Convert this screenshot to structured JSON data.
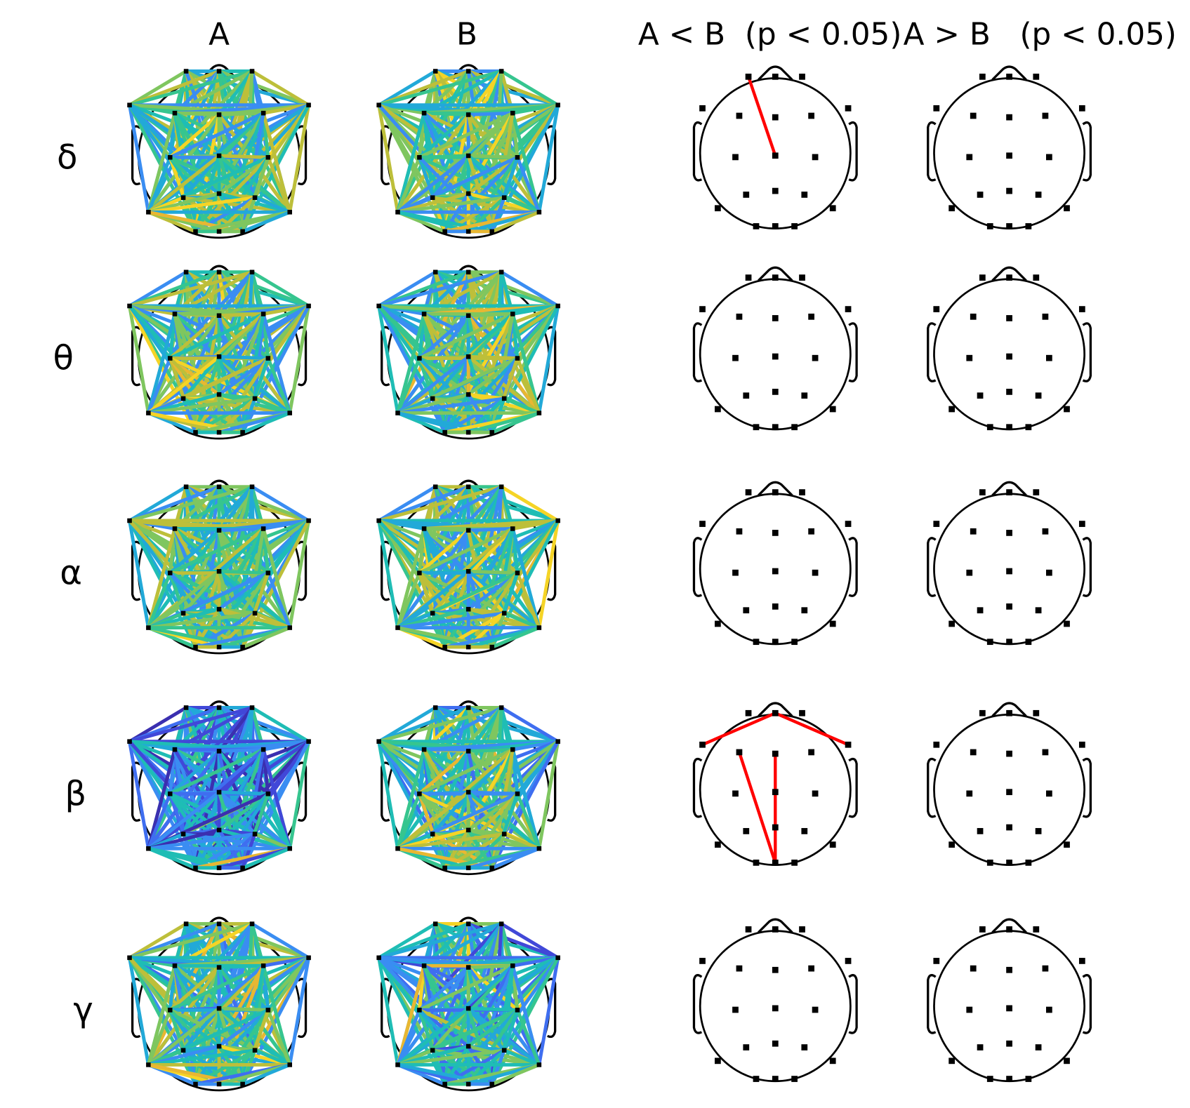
{
  "headers": [
    "A",
    "B",
    "A < B  (p < 0.05)",
    "A > B   (p < 0.05)"
  ],
  "rows": [
    "δ",
    "θ",
    "α",
    "β",
    "γ"
  ]
}
